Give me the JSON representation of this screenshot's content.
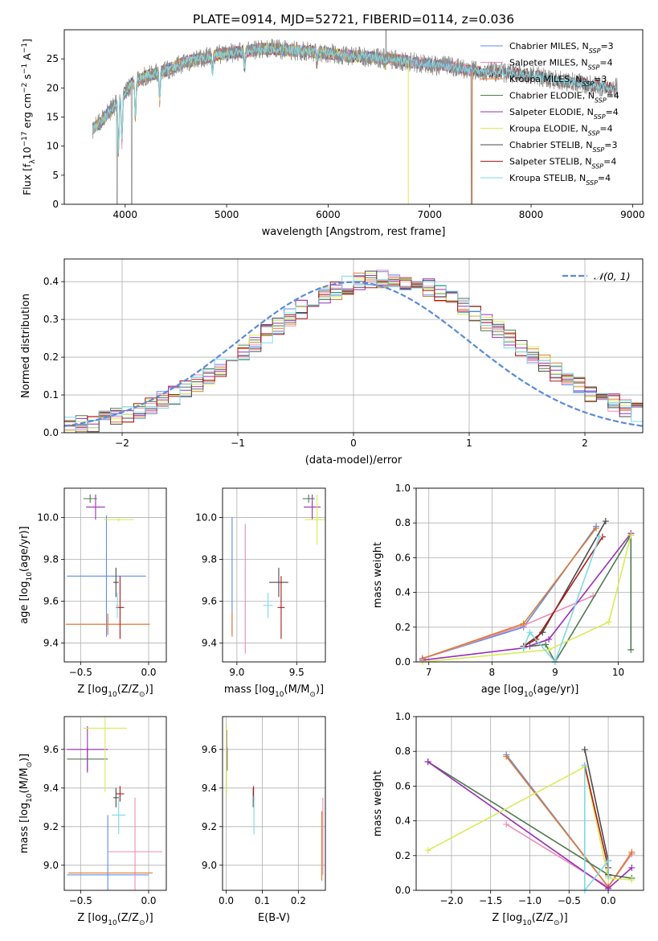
{
  "figure_title": "PLATE=0914, MJD=52721, FIBERID=0114, z=0.036",
  "colors": {
    "Chabrier MILES": "#5b8def",
    "Salpeter MILES": "#f08cb4",
    "Kroupa MILES": "#e07b2c",
    "Chabrier ELODIE": "#4f7a50",
    "Salpeter ELODIE": "#9a2fb8",
    "Kroupa ELODIE": "#d7ec55",
    "Chabrier STELIB": "#4a4a4a",
    "Salpeter STELIB": "#b01818",
    "Kroupa STELIB": "#7fd9e6",
    "data": "#8a8a8a",
    "gaussian": "#5b8bd9"
  },
  "chart_data": [
    {
      "id": "spectrum",
      "type": "line",
      "xlabel": "wavelength [Angstrom, rest frame]",
      "ylabel": "Flux [f",
      "ylabel_sub": "λ",
      "ylabel_mid": "10",
      "ylabel_sup1": "−17",
      "ylabel_rest": " erg cm",
      "ylabel_sup2": "−2",
      "ylabel_rest2": " s",
      "ylabel_sup3": "−1",
      "ylabel_rest3": " A",
      "ylabel_sup4": "−1",
      "ylabel_end": "]",
      "xlim": [
        3400,
        9100
      ],
      "ylim": [
        0,
        30
      ],
      "xticks": [
        4000,
        5000,
        6000,
        7000,
        8000,
        9000
      ],
      "yticks": [
        0,
        5,
        10,
        15,
        20,
        25
      ],
      "legend": [
        {
          "name": "Chabrier MILES",
          "n": "3"
        },
        {
          "name": "Salpeter MILES",
          "n": "4"
        },
        {
          "name": "Kroupa MILES",
          "n": "3"
        },
        {
          "name": "Chabrier ELODIE",
          "n": "4"
        },
        {
          "name": "Salpeter ELODIE",
          "n": "4"
        },
        {
          "name": "Kroupa ELODIE",
          "n": "4"
        },
        {
          "name": "Chabrier STELIB",
          "n": "3"
        },
        {
          "name": "Salpeter STELIB",
          "n": "4"
        },
        {
          "name": "Kroupa STELIB",
          "n": "4"
        }
      ],
      "legend_sub": "SSP",
      "continuum_points": [
        [
          3680,
          13
        ],
        [
          3750,
          14
        ],
        [
          3850,
          16
        ],
        [
          3950,
          18
        ],
        [
          4050,
          20.5
        ],
        [
          4200,
          22
        ],
        [
          4400,
          23
        ],
        [
          4600,
          24.5
        ],
        [
          4800,
          25.3
        ],
        [
          5000,
          26
        ],
        [
          5200,
          26.3
        ],
        [
          5400,
          26.8
        ],
        [
          5600,
          26.5
        ],
        [
          5800,
          26.3
        ],
        [
          6000,
          26
        ],
        [
          6200,
          25.5
        ],
        [
          6400,
          25.3
        ],
        [
          6600,
          25
        ],
        [
          6800,
          24.5
        ],
        [
          7000,
          24
        ],
        [
          7200,
          23.7
        ],
        [
          7400,
          23
        ],
        [
          7600,
          22.8
        ],
        [
          7800,
          22.5
        ],
        [
          8000,
          22.3
        ],
        [
          8200,
          21.5
        ],
        [
          8400,
          21
        ],
        [
          8600,
          20.5
        ],
        [
          8800,
          20
        ]
      ]
    },
    {
      "id": "residuals",
      "type": "line",
      "xlabel": "(data-model)/error",
      "ylabel": "Normed distribution",
      "xlim": [
        -2.5,
        2.5
      ],
      "ylim": [
        0,
        0.46
      ],
      "xticks": [
        -2,
        -1,
        0,
        1,
        2
      ],
      "xtick_labels": [
        "−2",
        "−1",
        "0",
        "1",
        "2"
      ],
      "yticks": [
        0,
        0.1,
        0.2,
        0.3,
        0.4
      ],
      "ytick_labels": [
        "0.0",
        "0.1",
        "0.2",
        "0.3",
        "0.4"
      ],
      "legend": "𝒩(0, 1)"
    },
    {
      "id": "age_vs_Z",
      "type": "scatter",
      "xlabel": "Z [log",
      "xlabel_sub": "10",
      "xlabel_rest": "(Z/Z",
      "xlabel_sub2": "⊙",
      "xlabel_end": ")]",
      "ylabel": "age  [log",
      "ylabel_sub": "10",
      "ylabel_rest": "(age/yr)]",
      "xlim": [
        -0.62,
        0.13
      ],
      "ylim": [
        9.31,
        10.14
      ],
      "xticks": [
        -0.5,
        0.0
      ],
      "xtick_labels": [
        "−0.5",
        "0.0"
      ],
      "yticks": [
        9.4,
        9.6,
        9.8,
        10.0
      ],
      "ytick_labels": [
        "9.4",
        "9.6",
        "9.8",
        "10.0"
      ],
      "points": [
        {
          "model": "Chabrier MILES",
          "x": -0.31,
          "y": 9.72,
          "xe": 0.29,
          "ye": 0.29
        },
        {
          "model": "Salpeter MILES",
          "x": -0.3,
          "y": 9.49,
          "xe": 0.3,
          "ye": 0.05
        },
        {
          "model": "Kroupa MILES",
          "x": -0.3,
          "y": 9.49,
          "xe": 0.31,
          "ye": 0.05
        },
        {
          "model": "Chabrier ELODIE",
          "x": -0.43,
          "y": 10.09,
          "xe": 0.05,
          "ye": 0.02
        },
        {
          "model": "Salpeter ELODIE",
          "x": -0.39,
          "y": 10.05,
          "xe": 0.07,
          "ye": 0.06
        },
        {
          "model": "Kroupa ELODIE",
          "x": -0.22,
          "y": 9.99,
          "xe": 0.11,
          "ye": 0.01
        },
        {
          "model": "Chabrier STELIB",
          "x": -0.24,
          "y": 9.69,
          "xe": 0.02,
          "ye": 0.07
        },
        {
          "model": "Salpeter STELIB",
          "x": -0.21,
          "y": 9.57,
          "xe": 0.03,
          "ye": 0.15
        },
        {
          "model": "Kroupa STELIB",
          "x": -0.23,
          "y": 9.58,
          "xe": 0.01,
          "ye": 0.06
        }
      ]
    },
    {
      "id": "age_vs_mass",
      "type": "scatter",
      "xlabel": "mass [log",
      "xlabel_sub": "10",
      "xlabel_rest": "(M/M",
      "xlabel_sub2": "⊙",
      "xlabel_end": ")]",
      "xlim": [
        8.88,
        9.74
      ],
      "ylim": [
        9.31,
        10.14
      ],
      "xticks": [
        9.0,
        9.5
      ],
      "xtick_labels": [
        "9.0",
        "9.5"
      ],
      "yticks": [
        9.4,
        9.6,
        9.8,
        10.0
      ],
      "ytick_labels": [
        "9.4",
        "9.6",
        "9.8",
        "10.0"
      ],
      "points": [
        {
          "model": "Chabrier MILES",
          "x": 8.96,
          "y": 9.72,
          "xe": 0.0,
          "ye": 0.28
        },
        {
          "model": "Salpeter MILES",
          "x": 9.07,
          "y": 9.66,
          "xe": 0.0,
          "ye": 0.31
        },
        {
          "model": "Kroupa MILES",
          "x": 8.96,
          "y": 9.49,
          "xe": 0.0,
          "ye": 0.06
        },
        {
          "model": "Chabrier ELODIE",
          "x": 9.6,
          "y": 10.09,
          "xe": 0.05,
          "ye": 0.02
        },
        {
          "model": "Salpeter ELODIE",
          "x": 9.63,
          "y": 10.05,
          "xe": 0.07,
          "ye": 0.06
        },
        {
          "model": "Kroupa ELODIE",
          "x": 9.67,
          "y": 9.99,
          "xe": 0.1,
          "ye": 0.12
        },
        {
          "model": "Chabrier STELIB",
          "x": 9.35,
          "y": 9.69,
          "xe": 0.08,
          "ye": 0.07
        },
        {
          "model": "Salpeter STELIB",
          "x": 9.37,
          "y": 9.57,
          "xe": 0.03,
          "ye": 0.15
        },
        {
          "model": "Kroupa STELIB",
          "x": 9.26,
          "y": 9.58,
          "xe": 0.04,
          "ye": 0.06
        }
      ]
    },
    {
      "id": "weight_vs_age",
      "type": "line",
      "xlabel": "age  [log",
      "xlabel_sub": "10",
      "xlabel_rest": "(age/yr)]",
      "ylabel": "mass weight",
      "xlim": [
        6.8,
        10.4
      ],
      "ylim": [
        0,
        1.0
      ],
      "xticks": [
        7,
        8,
        9,
        10
      ],
      "xtick_labels": [
        "7",
        "8",
        "9",
        "10"
      ],
      "yticks": [
        0,
        0.2,
        0.4,
        0.6,
        0.8,
        1.0
      ],
      "ytick_labels": [
        "0.0",
        "0.2",
        "0.4",
        "0.6",
        "0.8",
        "1.0"
      ],
      "series": [
        {
          "model": "Chabrier MILES",
          "x": [
            6.9,
            8.5,
            9.65
          ],
          "y": [
            0.02,
            0.2,
            0.78
          ]
        },
        {
          "model": "Salpeter MILES",
          "x": [
            6.9,
            8.5,
            9.6
          ],
          "y": [
            0.02,
            0.21,
            0.38
          ]
        },
        {
          "model": "Kroupa MILES",
          "x": [
            6.9,
            8.5,
            9.65
          ],
          "y": [
            0.02,
            0.22,
            0.77
          ]
        },
        {
          "model": "Chabrier ELODIE",
          "x": [
            8.6,
            8.85,
            9.0,
            10.2,
            10.2
          ],
          "y": [
            0.09,
            0.1,
            0.0,
            0.73,
            0.07
          ]
        },
        {
          "model": "Salpeter ELODIE",
          "x": [
            6.9,
            8.5,
            8.9,
            10.2
          ],
          "y": [
            0.01,
            0.08,
            0.13,
            0.74
          ]
        },
        {
          "model": "Kroupa ELODIE",
          "x": [
            6.9,
            8.9,
            9.85,
            10.2
          ],
          "y": [
            0.0,
            0.07,
            0.23,
            0.73
          ]
        },
        {
          "model": "Chabrier STELIB",
          "x": [
            8.5,
            8.8,
            9.8
          ],
          "y": [
            0.09,
            0.17,
            0.81
          ]
        },
        {
          "model": "Salpeter STELIB",
          "x": [
            8.5,
            8.7,
            9.75
          ],
          "y": [
            0.09,
            0.13,
            0.72
          ]
        },
        {
          "model": "Kroupa STELIB",
          "x": [
            8.5,
            8.6,
            9.0,
            9.7
          ],
          "y": [
            0.08,
            0.17,
            0.0,
            0.72
          ]
        }
      ]
    },
    {
      "id": "mass_vs_Z",
      "type": "scatter",
      "xlabel": "Z [log",
      "xlabel_sub": "10",
      "xlabel_rest": "(Z/Z",
      "xlabel_sub2": "⊙",
      "xlabel_end": ")]",
      "ylabel": "mass [log",
      "ylabel_sub": "10",
      "ylabel_rest": "(M/M",
      "ylabel_sub2": "⊙",
      "ylabel_end": ")]",
      "xlim": [
        -0.62,
        0.13
      ],
      "ylim": [
        8.87,
        9.77
      ],
      "xticks": [
        -0.5,
        0.0
      ],
      "xtick_labels": [
        "−0.5",
        "0.0"
      ],
      "yticks": [
        9.0,
        9.2,
        9.4,
        9.6
      ],
      "ytick_labels": [
        "9.0",
        "9.2",
        "9.4",
        "9.6"
      ],
      "points": [
        {
          "model": "Chabrier MILES",
          "x": -0.3,
          "y": 8.95,
          "xe": 0.3,
          "ye": 0.31
        },
        {
          "model": "Salpeter MILES",
          "x": -0.1,
          "y": 9.07,
          "xe": 0.2,
          "ye": 0.28
        },
        {
          "model": "Kroupa MILES",
          "x": -0.28,
          "y": 8.96,
          "xe": 0.31,
          "ye": 0.0
        },
        {
          "model": "Chabrier ELODIE",
          "x": -0.45,
          "y": 9.55,
          "xe": 0.15,
          "ye": 0.06
        },
        {
          "model": "Salpeter ELODIE",
          "x": -0.45,
          "y": 9.6,
          "xe": 0.15,
          "ye": 0.12
        },
        {
          "model": "Kroupa ELODIE",
          "x": -0.32,
          "y": 9.71,
          "xe": 0.16,
          "ye": 0.33
        },
        {
          "model": "Chabrier STELIB",
          "x": -0.24,
          "y": 9.35,
          "xe": 0.02,
          "ye": 0.05
        },
        {
          "model": "Salpeter STELIB",
          "x": -0.21,
          "y": 9.37,
          "xe": 0.03,
          "ye": 0.04
        },
        {
          "model": "Kroupa STELIB",
          "x": -0.22,
          "y": 9.26,
          "xe": 0.05,
          "ye": 0.1
        }
      ]
    },
    {
      "id": "mass_vs_ebv",
      "type": "scatter",
      "xlabel": "E(B-V)",
      "xlim": [
        -0.01,
        0.275
      ],
      "ylim": [
        8.87,
        9.77
      ],
      "xticks": [
        0.0,
        0.1,
        0.2
      ],
      "xtick_labels": [
        "0.0",
        "0.1",
        "0.2"
      ],
      "yticks": [
        9.0,
        9.2,
        9.4,
        9.6
      ],
      "ytick_labels": [
        "9.0",
        "9.2",
        "9.4",
        "9.6"
      ],
      "points": [
        {
          "model": "Chabrier MILES",
          "x": 0.265,
          "y": 9.1,
          "xe": 0.0,
          "ye": 0.18
        },
        {
          "model": "Salpeter MILES",
          "x": 0.268,
          "y": 9.15,
          "xe": 0.0,
          "ye": 0.2
        },
        {
          "model": "Kroupa MILES",
          "x": 0.265,
          "y": 9.1,
          "xe": 0.0,
          "ye": 0.18
        },
        {
          "model": "Chabrier ELODIE",
          "x": 0.003,
          "y": 9.55,
          "xe": 0.0,
          "ye": 0.06
        },
        {
          "model": "Salpeter ELODIE",
          "x": 0.002,
          "y": 9.6,
          "xe": 0.0,
          "ye": 0.1
        },
        {
          "model": "Kroupa ELODIE",
          "x": 0.001,
          "y": 9.55,
          "xe": 0.0,
          "ye": 0.18
        },
        {
          "model": "Chabrier STELIB",
          "x": 0.075,
          "y": 9.35,
          "xe": 0.0,
          "ye": 0.05
        },
        {
          "model": "Salpeter STELIB",
          "x": 0.076,
          "y": 9.37,
          "xe": 0.0,
          "ye": 0.04
        },
        {
          "model": "Kroupa STELIB",
          "x": 0.077,
          "y": 9.26,
          "xe": 0.0,
          "ye": 0.1
        }
      ]
    },
    {
      "id": "weight_vs_Z",
      "type": "line",
      "xlabel": "Z [log",
      "xlabel_sub": "10",
      "xlabel_rest": "(Z/Z",
      "xlabel_sub2": "⊙",
      "xlabel_end": ")]",
      "ylabel": "mass weight",
      "xlim": [
        -2.45,
        0.45
      ],
      "ylim": [
        0,
        1.0
      ],
      "xticks": [
        -2.0,
        -1.5,
        -1.0,
        -0.5,
        0.0
      ],
      "xtick_labels": [
        "−2.0",
        "−1.5",
        "−1.0",
        "−0.5",
        "0.0"
      ],
      "yticks": [
        0,
        0.2,
        0.4,
        0.6,
        0.8,
        1.0
      ],
      "ytick_labels": [
        "0.0",
        "0.2",
        "0.4",
        "0.6",
        "0.8",
        "1.0"
      ],
      "series": [
        {
          "model": "Chabrier MILES",
          "x": [
            -1.3,
            0.0,
            0.3
          ],
          "y": [
            0.78,
            0.02,
            0.21
          ]
        },
        {
          "model": "Salpeter MILES",
          "x": [
            -1.3,
            0.0,
            0.3
          ],
          "y": [
            0.38,
            0.02,
            0.21
          ]
        },
        {
          "model": "Kroupa MILES",
          "x": [
            -1.3,
            0.0,
            0.3
          ],
          "y": [
            0.77,
            0.02,
            0.22
          ]
        },
        {
          "model": "Chabrier ELODIE",
          "x": [
            -2.3,
            0.0,
            0.3
          ],
          "y": [
            0.74,
            0.09,
            0.07
          ]
        },
        {
          "model": "Salpeter ELODIE",
          "x": [
            -2.3,
            0.0,
            0.3
          ],
          "y": [
            0.74,
            0.01,
            0.13
          ]
        },
        {
          "model": "Kroupa ELODIE",
          "x": [
            -2.3,
            -0.3,
            0.0,
            0.3
          ],
          "y": [
            0.23,
            0.71,
            0.07,
            0.06
          ]
        },
        {
          "model": "Chabrier STELIB",
          "x": [
            -0.3,
            0.0,
            0.0
          ],
          "y": [
            0.81,
            0.17,
            0.09
          ]
        },
        {
          "model": "Salpeter STELIB",
          "x": [
            -0.3,
            0.0,
            0.0
          ],
          "y": [
            0.72,
            0.13,
            0.09
          ]
        },
        {
          "model": "Kroupa STELIB",
          "x": [
            -0.3,
            -0.3,
            0.0,
            0.0
          ],
          "y": [
            0.72,
            0.0,
            0.17,
            0.08
          ]
        }
      ]
    }
  ]
}
